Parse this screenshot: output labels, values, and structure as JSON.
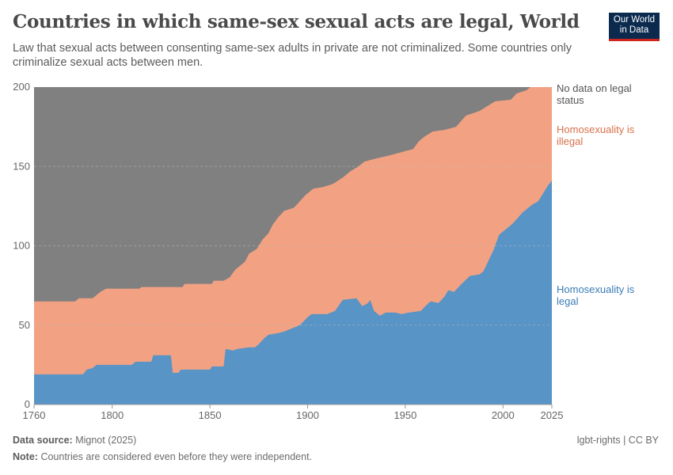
{
  "header": {
    "title": "Countries in which same-sex sexual acts are legal, World",
    "subtitle": "Law that sexual acts between consenting same-sex adults in private are not criminalized. Some countries only criminalize sexual acts between men.",
    "logo_line1": "Our World",
    "logo_line2": "in Data"
  },
  "footer": {
    "source_label": "Data source:",
    "source": "Mignot (2025)",
    "note_label": "Note:",
    "note": "Countries are considered even before they were independent.",
    "credit": "lgbt-rights | CC BY"
  },
  "chart_data": {
    "type": "area",
    "stacked": true,
    "title": "Countries in which same-sex sexual acts are legal, World",
    "xlabel": "",
    "ylabel": "",
    "xlim": [
      1760,
      2025
    ],
    "ylim": [
      0,
      200
    ],
    "x_ticks": [
      "1760",
      "1800",
      "1850",
      "1900",
      "1950",
      "2000",
      "2025"
    ],
    "y_ticks": [
      "0",
      "50",
      "100",
      "150",
      "200"
    ],
    "grid": "horizontal dashed",
    "legend_placement": "right (inline labels)",
    "colors": {
      "legal": "#5894c6",
      "illegal": "#f2a283",
      "no_data": "#808080",
      "legal_label": "#3b7bb5",
      "illegal_label": "#d8704b",
      "no_data_label": "#555555"
    },
    "series": [
      {
        "name": "Homosexuality is legal",
        "label_lines": [
          "Homosexuality is",
          "legal"
        ],
        "points": [
          [
            1760,
            19
          ],
          [
            1785,
            19
          ],
          [
            1787,
            22
          ],
          [
            1790,
            23
          ],
          [
            1792,
            25
          ],
          [
            1810,
            25
          ],
          [
            1812,
            27
          ],
          [
            1820,
            27
          ],
          [
            1821,
            31
          ],
          [
            1830,
            31
          ],
          [
            1831,
            20
          ],
          [
            1834,
            20
          ],
          [
            1835,
            22
          ],
          [
            1850,
            22
          ],
          [
            1851,
            24
          ],
          [
            1857,
            24
          ],
          [
            1858,
            35
          ],
          [
            1862,
            34
          ],
          [
            1864,
            35
          ],
          [
            1870,
            36
          ],
          [
            1873,
            36
          ],
          [
            1875,
            38
          ],
          [
            1878,
            42
          ],
          [
            1880,
            44
          ],
          [
            1885,
            45
          ],
          [
            1888,
            46
          ],
          [
            1892,
            48
          ],
          [
            1896,
            50
          ],
          [
            1900,
            55
          ],
          [
            1902,
            57
          ],
          [
            1910,
            57
          ],
          [
            1914,
            59
          ],
          [
            1918,
            66
          ],
          [
            1925,
            67
          ],
          [
            1928,
            62
          ],
          [
            1931,
            64
          ],
          [
            1932,
            66
          ],
          [
            1934,
            59
          ],
          [
            1937,
            56
          ],
          [
            1940,
            58
          ],
          [
            1945,
            58
          ],
          [
            1948,
            57
          ],
          [
            1952,
            58
          ],
          [
            1958,
            59
          ],
          [
            1961,
            63
          ],
          [
            1963,
            65
          ],
          [
            1967,
            64
          ],
          [
            1970,
            68
          ],
          [
            1972,
            72
          ],
          [
            1975,
            71
          ],
          [
            1978,
            75
          ],
          [
            1983,
            81
          ],
          [
            1988,
            82
          ],
          [
            1990,
            84
          ],
          [
            1995,
            97
          ],
          [
            1998,
            107
          ],
          [
            2000,
            109
          ],
          [
            2005,
            114
          ],
          [
            2010,
            121
          ],
          [
            2015,
            126
          ],
          [
            2018,
            128
          ],
          [
            2020,
            132
          ],
          [
            2023,
            138
          ],
          [
            2025,
            141
          ]
        ]
      },
      {
        "name": "Homosexuality is illegal",
        "label_lines": [
          "Homosexuality is",
          "illegal"
        ],
        "total_points": [
          [
            1760,
            65
          ],
          [
            1781,
            65
          ],
          [
            1783,
            67
          ],
          [
            1790,
            67
          ],
          [
            1794,
            71
          ],
          [
            1797,
            73
          ],
          [
            1814,
            73
          ],
          [
            1815,
            74
          ],
          [
            1836,
            74
          ],
          [
            1837,
            76
          ],
          [
            1851,
            76
          ],
          [
            1852,
            78
          ],
          [
            1857,
            78
          ],
          [
            1860,
            80
          ],
          [
            1863,
            85
          ],
          [
            1866,
            88
          ],
          [
            1868,
            90
          ],
          [
            1870,
            95
          ],
          [
            1874,
            98
          ],
          [
            1877,
            104
          ],
          [
            1880,
            108
          ],
          [
            1882,
            113
          ],
          [
            1885,
            118
          ],
          [
            1888,
            122
          ],
          [
            1893,
            124
          ],
          [
            1896,
            128
          ],
          [
            1899,
            132
          ],
          [
            1903,
            136
          ],
          [
            1908,
            137
          ],
          [
            1913,
            139
          ],
          [
            1918,
            143
          ],
          [
            1922,
            147
          ],
          [
            1926,
            150
          ],
          [
            1929,
            153
          ],
          [
            1935,
            155
          ],
          [
            1942,
            157
          ],
          [
            1948,
            159
          ],
          [
            1954,
            161
          ],
          [
            1957,
            166
          ],
          [
            1960,
            169
          ],
          [
            1964,
            172
          ],
          [
            1970,
            173
          ],
          [
            1976,
            175
          ],
          [
            1981,
            182
          ],
          [
            1988,
            185
          ],
          [
            1996,
            191
          ],
          [
            2004,
            192
          ],
          [
            2007,
            196
          ],
          [
            2012,
            198
          ],
          [
            2014,
            200
          ],
          [
            2025,
            200
          ]
        ]
      },
      {
        "name": "No data on legal status",
        "label_lines": [
          "No data on legal",
          "status"
        ],
        "total": 200
      }
    ]
  }
}
